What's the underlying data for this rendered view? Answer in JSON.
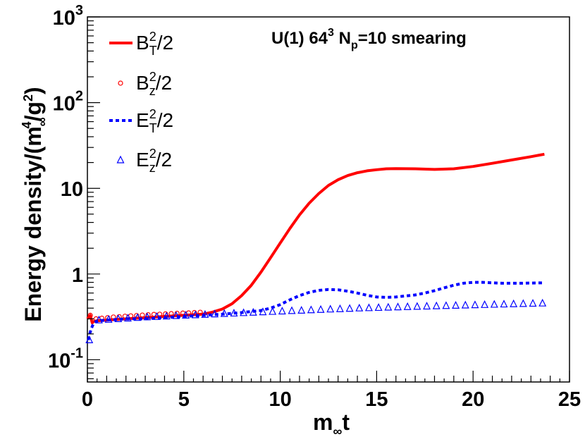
{
  "chart_data": {
    "type": "line",
    "title": {
      "prefix": "U(1) 64",
      "sup": "3",
      "mid": " N",
      "sub": "p",
      "suffix": "=10 smearing"
    },
    "xlabel": {
      "main": "m",
      "sub": "∞",
      "tail": "t"
    },
    "ylabel": {
      "part1": "Energy density/(m",
      "sub1": "∞",
      "sup1": "4",
      "part2": "/g",
      "sup2": "2",
      "part3": ")"
    },
    "xlim": [
      0,
      25
    ],
    "ylim": [
      0.055,
      1000
    ],
    "yscale": "log",
    "x_ticks": [
      "0",
      "5",
      "10",
      "15",
      "20",
      "25"
    ],
    "y_ticks": [
      {
        "value": 0.1,
        "base": "10",
        "exp": "-1"
      },
      {
        "value": 1,
        "base": "1",
        "exp": ""
      },
      {
        "value": 10,
        "base": "10",
        "exp": ""
      },
      {
        "value": 100,
        "base": "10",
        "exp": "2"
      },
      {
        "value": 1000,
        "base": "10",
        "exp": "3"
      }
    ],
    "series": [
      {
        "name": "B_T^2/2",
        "label_base": "B",
        "label_sup": "2",
        "label_sub": "T",
        "label_tail": "/2",
        "style": "solid",
        "color": "#ff0000",
        "x": [
          0.0,
          0.15,
          0.25,
          0.35,
          0.5,
          1,
          2,
          3,
          4,
          5,
          6,
          6.5,
          7,
          7.5,
          8,
          8.5,
          9,
          9.5,
          10,
          10.5,
          11,
          11.5,
          12,
          12.5,
          13,
          13.5,
          14,
          14.5,
          15,
          15.5,
          16,
          17,
          18,
          19,
          20,
          21,
          22,
          23,
          23.7
        ],
        "y": [
          0.3,
          0.33,
          0.27,
          0.28,
          0.285,
          0.29,
          0.3,
          0.31,
          0.32,
          0.33,
          0.34,
          0.36,
          0.39,
          0.45,
          0.56,
          0.74,
          1.05,
          1.55,
          2.3,
          3.4,
          4.9,
          6.7,
          8.7,
          10.8,
          12.6,
          14.1,
          15.2,
          16.0,
          16.5,
          16.9,
          17.0,
          16.9,
          16.6,
          16.9,
          18.0,
          19.6,
          21.4,
          23.4,
          25.0
        ]
      },
      {
        "name": "B_z^2/2",
        "label_base": "B",
        "label_sup": "2",
        "label_sub": "z",
        "label_tail": "/2",
        "style": "circle",
        "color": "#ff0000",
        "x": [
          0.15,
          0.45,
          0.75,
          1.05,
          1.35,
          1.65,
          1.95,
          2.25,
          2.55,
          2.85,
          3.15,
          3.45,
          3.75,
          4.05,
          4.35,
          4.65,
          4.95,
          5.25,
          5.55,
          5.85
        ],
        "y": [
          0.33,
          0.3,
          0.305,
          0.31,
          0.315,
          0.318,
          0.322,
          0.325,
          0.328,
          0.332,
          0.335,
          0.338,
          0.34,
          0.343,
          0.345,
          0.348,
          0.35,
          0.352,
          0.355,
          0.358
        ]
      },
      {
        "name": "E_T^2/2",
        "label_base": "E",
        "label_sup": "2",
        "label_sub": "T",
        "label_tail": "/2",
        "style": "dotted",
        "color": "#0000ff",
        "x": [
          0.05,
          0.12,
          0.2,
          0.3,
          0.45,
          0.6,
          1,
          2,
          3,
          4,
          5,
          6,
          7,
          8,
          9,
          9.5,
          10,
          10.5,
          11,
          11.5,
          12,
          12.5,
          13,
          13.5,
          14,
          14.5,
          15,
          15.5,
          16,
          16.5,
          17,
          17.5,
          18,
          18.5,
          19,
          19.5,
          20,
          20.5,
          21,
          21.5,
          22,
          22.5,
          23,
          23.7
        ],
        "y": [
          0.17,
          0.2,
          0.23,
          0.26,
          0.28,
          0.285,
          0.29,
          0.3,
          0.3,
          0.31,
          0.32,
          0.33,
          0.34,
          0.355,
          0.375,
          0.4,
          0.44,
          0.5,
          0.56,
          0.61,
          0.645,
          0.66,
          0.655,
          0.63,
          0.6,
          0.565,
          0.54,
          0.535,
          0.54,
          0.555,
          0.57,
          0.6,
          0.64,
          0.69,
          0.74,
          0.78,
          0.8,
          0.8,
          0.79,
          0.78,
          0.78,
          0.78,
          0.785,
          0.79
        ]
      },
      {
        "name": "E_z^2/2",
        "label_base": "E",
        "label_sup": "2",
        "label_sub": "z",
        "label_tail": "/2",
        "style": "triangle",
        "color": "#0000ff",
        "x": [
          0.1,
          0.6,
          1.1,
          1.6,
          2.1,
          2.6,
          3.1,
          3.6,
          4.1,
          4.6,
          5.1,
          5.6,
          6.1,
          6.6,
          7.1,
          7.6,
          8.1,
          8.6,
          9.1,
          9.6,
          10.1,
          10.6,
          11.1,
          11.6,
          12.1,
          12.6,
          13.1,
          13.6,
          14.1,
          14.6,
          15.1,
          15.6,
          16.1,
          16.6,
          17.1,
          17.6,
          18.1,
          18.6,
          19.1,
          19.6,
          20.1,
          20.6,
          21.1,
          21.6,
          22.1,
          22.6,
          23.1,
          23.6
        ],
        "y": [
          0.17,
          0.29,
          0.295,
          0.3,
          0.305,
          0.31,
          0.315,
          0.318,
          0.322,
          0.326,
          0.33,
          0.333,
          0.337,
          0.341,
          0.345,
          0.349,
          0.353,
          0.357,
          0.361,
          0.365,
          0.369,
          0.373,
          0.377,
          0.381,
          0.385,
          0.389,
          0.392,
          0.396,
          0.4,
          0.403,
          0.406,
          0.409,
          0.412,
          0.415,
          0.418,
          0.421,
          0.424,
          0.427,
          0.43,
          0.433,
          0.436,
          0.439,
          0.442,
          0.445,
          0.448,
          0.451,
          0.454,
          0.457
        ]
      }
    ]
  }
}
